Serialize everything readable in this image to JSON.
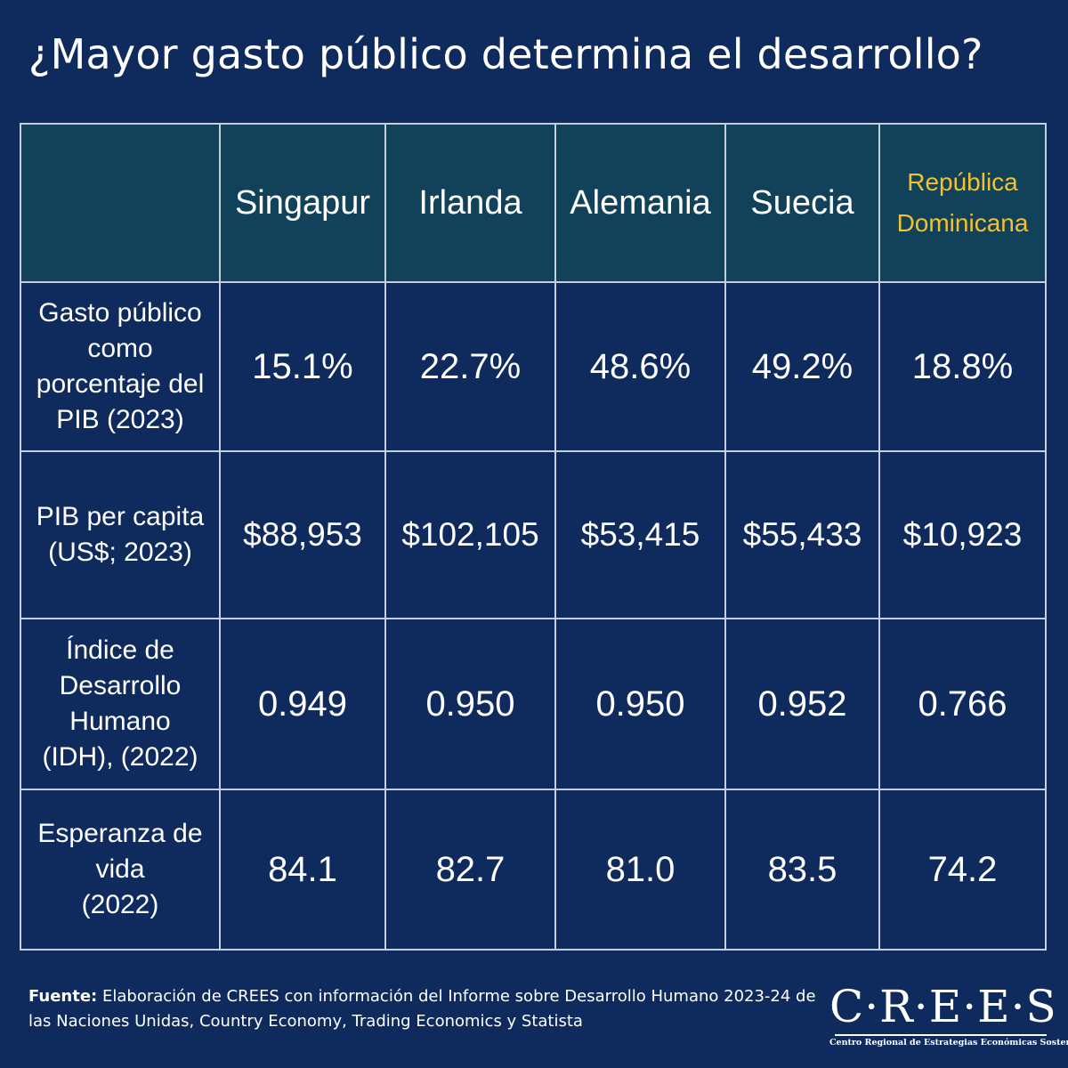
{
  "title": "¿Mayor gasto público determina el desarrollo?",
  "colors": {
    "background": "#0f2a5c",
    "header_background": "#12425a",
    "highlight": "#f2c12e",
    "border": "#c5cede"
  },
  "chart_data": {
    "type": "table",
    "title": "¿Mayor gasto público determina el desarrollo?",
    "columns": [
      "Singapur",
      "Irlanda",
      "Alemania",
      "Suecia",
      "República Dominicana"
    ],
    "highlight_column": "República Dominicana",
    "rows": [
      {
        "label_lines": [
          "Gasto público",
          "como",
          "porcentaje del",
          "PIB (2023)"
        ],
        "values": [
          "15.1%",
          "22.7%",
          "48.6%",
          "49.2%",
          "18.8%"
        ]
      },
      {
        "label_lines": [
          "PIB per capita",
          "(US$; 2023)"
        ],
        "values": [
          "$88,953",
          "$102,105",
          "$53,415",
          "$55,433",
          "$10,923"
        ]
      },
      {
        "label_lines": [
          "Índice de",
          "Desarrollo",
          "Humano",
          "(IDH), (2022)"
        ],
        "values": [
          "0.949",
          "0.950",
          "0.950",
          "0.952",
          "0.766"
        ]
      },
      {
        "label_lines": [
          "Esperanza de",
          "vida",
          "(2022)"
        ],
        "values": [
          "84.1",
          "82.7",
          "81.0",
          "83.5",
          "74.2"
        ]
      }
    ]
  },
  "header": {
    "col1": "Singapur",
    "col2": "Irlanda",
    "col3": "Alemania",
    "col4": "Suecia",
    "col5_line1": "República",
    "col5_line2": "Dominicana"
  },
  "footer": {
    "source_label": "Fuente:",
    "source_text": "Elaboración de CREES con información del Informe sobre Desarrollo Humano 2023-24 de las Naciones Unidas, Country Economy, Trading Economics y Statista"
  },
  "logo": {
    "wordmark": "C·R·E·E·S",
    "subtitle": "Centro Regional de Estrategias Económicas Sostenibles"
  }
}
